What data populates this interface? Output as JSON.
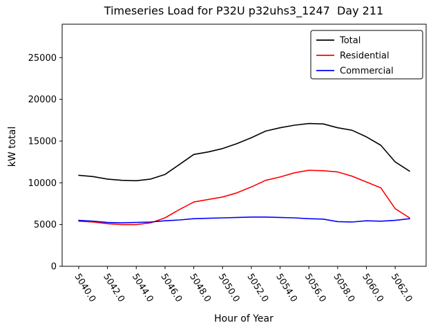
{
  "chart_data": {
    "type": "line",
    "title": "Timeseries Load for P32U p32uhs3_1247  Day 211",
    "xlabel": "Hour of Year",
    "ylabel": "kW total",
    "x": [
      5040,
      5041,
      5042,
      5043,
      5044,
      5045,
      5046,
      5047,
      5048,
      5049,
      5050,
      5051,
      5052,
      5053,
      5054,
      5055,
      5056,
      5057,
      5058,
      5059,
      5060,
      5061,
      5062,
      5063
    ],
    "series": [
      {
        "name": "Total",
        "color": "#000000",
        "values": [
          10900,
          10750,
          10450,
          10300,
          10250,
          10450,
          11000,
          12200,
          13400,
          13700,
          14100,
          14700,
          15400,
          16200,
          16600,
          16900,
          17100,
          17050,
          16600,
          16300,
          15500,
          14500,
          12500,
          11400
        ]
      },
      {
        "name": "Residential",
        "color": "#ff0000",
        "values": [
          5400,
          5300,
          5100,
          5000,
          5000,
          5200,
          5800,
          6800,
          7700,
          8000,
          8300,
          8800,
          9500,
          10300,
          10700,
          11200,
          11500,
          11450,
          11300,
          10800,
          10100,
          9400,
          6900,
          5800
        ]
      },
      {
        "name": "Commercial",
        "color": "#0000ff",
        "values": [
          5500,
          5400,
          5250,
          5200,
          5250,
          5300,
          5450,
          5550,
          5700,
          5750,
          5800,
          5850,
          5900,
          5900,
          5850,
          5800,
          5700,
          5650,
          5350,
          5300,
          5450,
          5400,
          5500,
          5700
        ]
      }
    ],
    "xticks": [
      5040,
      5042,
      5044,
      5046,
      5048,
      5050,
      5052,
      5054,
      5056,
      5058,
      5060,
      5062
    ],
    "xtick_labels": [
      "5040.0",
      "5042.0",
      "5044.0",
      "5046.0",
      "5048.0",
      "5050.0",
      "5052.0",
      "5054.0",
      "5056.0",
      "5058.0",
      "5060.0",
      "5062.0"
    ],
    "yticks": [
      0,
      5000,
      10000,
      15000,
      20000,
      25000
    ],
    "ytick_labels": [
      "0",
      "5000",
      "10000",
      "15000",
      "20000",
      "25000"
    ],
    "xlim": [
      5038.85,
      5064.15
    ],
    "ylim": [
      0,
      29000
    ],
    "grid": false,
    "legend_position": "upper right"
  }
}
